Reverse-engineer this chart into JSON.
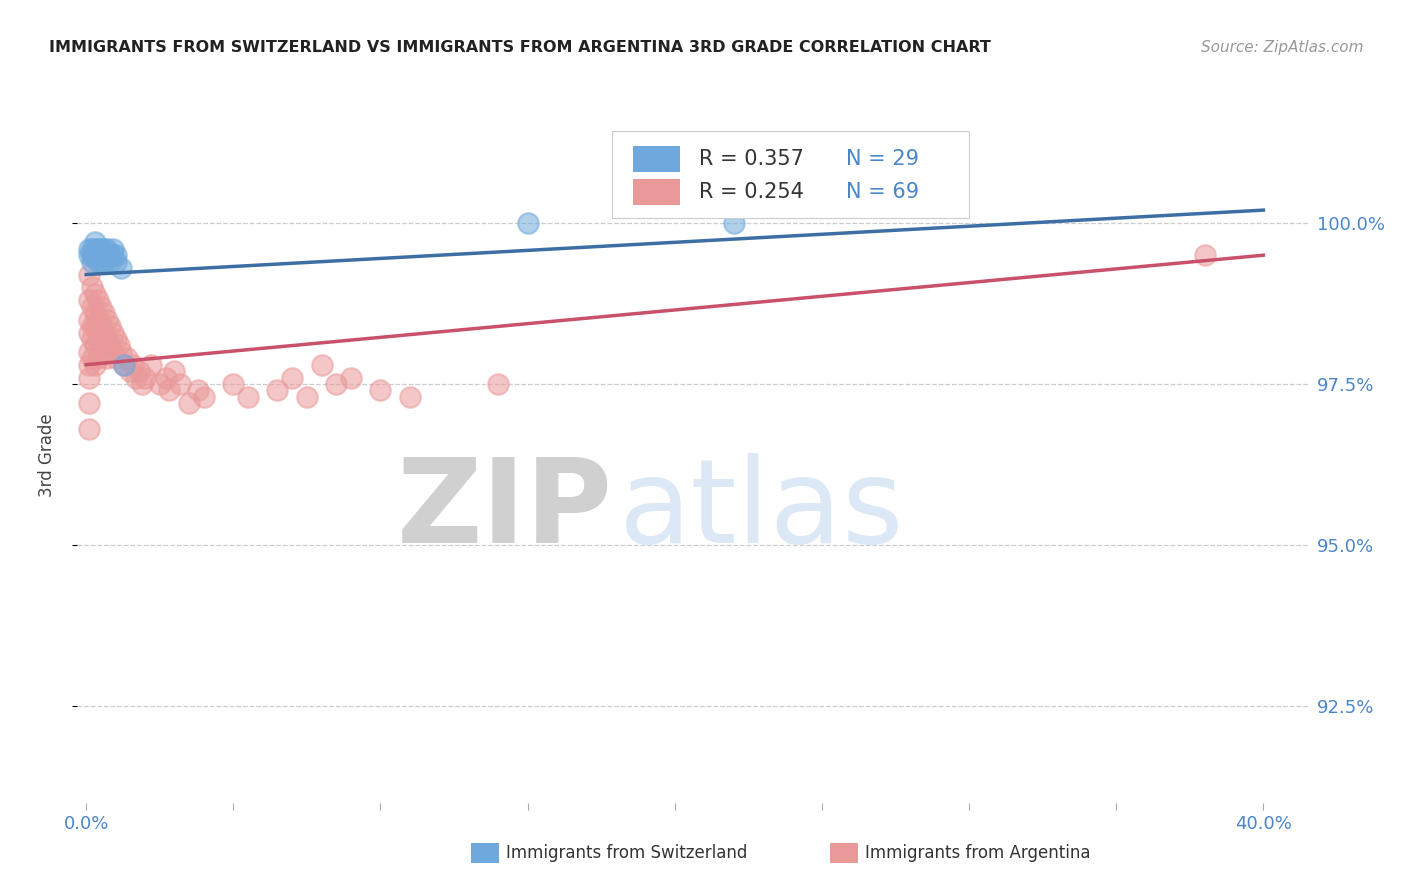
{
  "title": "IMMIGRANTS FROM SWITZERLAND VS IMMIGRANTS FROM ARGENTINA 3RD GRADE CORRELATION CHART",
  "source": "Source: ZipAtlas.com",
  "ylabel": "3rd Grade",
  "y_ticks": [
    92.5,
    95.0,
    97.5,
    100.0
  ],
  "y_tick_labels": [
    "92.5%",
    "95.0%",
    "97.5%",
    "100.0%"
  ],
  "x_ticks": [
    0.0,
    0.05,
    0.1,
    0.15,
    0.2,
    0.25,
    0.3,
    0.35,
    0.4
  ],
  "xlim": [
    -0.003,
    0.415
  ],
  "ylim": [
    91.0,
    101.8
  ],
  "legend_r_blue": "R = 0.357",
  "legend_n_blue": "N = 29",
  "legend_r_pink": "R = 0.254",
  "legend_n_pink": "N = 69",
  "blue_color": "#6fa8dc",
  "pink_color": "#ea9999",
  "blue_line_color": "#3d6fa5",
  "pink_line_color": "#c9516a",
  "title_color": "#222222",
  "axis_label_color": "#4a86c8",
  "grid_color": "#cccccc",
  "watermark_color": "#d6e4f5",
  "watermark_text": "ZIPatlas",
  "bottom_label1": "Immigrants from Switzerland",
  "bottom_label2": "Immigrants from Argentina",
  "sw_x": [
    0.001,
    0.001,
    0.002,
    0.002,
    0.002,
    0.003,
    0.003,
    0.003,
    0.004,
    0.004,
    0.004,
    0.005,
    0.005,
    0.005,
    0.006,
    0.006,
    0.006,
    0.007,
    0.007,
    0.008,
    0.008,
    0.009,
    0.009,
    0.01,
    0.01,
    0.012,
    0.013,
    0.15,
    0.22
  ],
  "sw_y": [
    99.5,
    99.6,
    99.4,
    99.5,
    99.6,
    99.5,
    99.6,
    99.7,
    99.4,
    99.5,
    99.6,
    99.4,
    99.5,
    99.6,
    99.4,
    99.5,
    99.6,
    99.5,
    99.6,
    99.4,
    99.5,
    99.5,
    99.6,
    99.4,
    99.5,
    99.3,
    97.8,
    100.0,
    100.0
  ],
  "arg_x": [
    0.001,
    0.001,
    0.001,
    0.001,
    0.001,
    0.001,
    0.001,
    0.001,
    0.001,
    0.002,
    0.002,
    0.002,
    0.002,
    0.002,
    0.003,
    0.003,
    0.003,
    0.003,
    0.003,
    0.004,
    0.004,
    0.004,
    0.004,
    0.005,
    0.005,
    0.005,
    0.006,
    0.006,
    0.006,
    0.007,
    0.007,
    0.007,
    0.008,
    0.008,
    0.009,
    0.009,
    0.01,
    0.01,
    0.011,
    0.012,
    0.013,
    0.014,
    0.015,
    0.016,
    0.017,
    0.018,
    0.019,
    0.02,
    0.022,
    0.025,
    0.027,
    0.028,
    0.03,
    0.032,
    0.035,
    0.038,
    0.04,
    0.05,
    0.055,
    0.065,
    0.07,
    0.075,
    0.08,
    0.085,
    0.09,
    0.1,
    0.11,
    0.14,
    0.38
  ],
  "arg_y": [
    99.2,
    98.8,
    98.5,
    98.3,
    98.0,
    97.8,
    97.6,
    97.2,
    96.8,
    99.0,
    98.7,
    98.4,
    98.2,
    97.9,
    98.9,
    98.6,
    98.4,
    98.1,
    97.8,
    98.8,
    98.5,
    98.2,
    97.9,
    98.7,
    98.4,
    98.1,
    98.6,
    98.3,
    98.0,
    98.5,
    98.2,
    97.9,
    98.4,
    98.1,
    98.3,
    98.0,
    98.2,
    97.9,
    98.1,
    98.0,
    97.8,
    97.9,
    97.7,
    97.8,
    97.6,
    97.7,
    97.5,
    97.6,
    97.8,
    97.5,
    97.6,
    97.4,
    97.7,
    97.5,
    97.2,
    97.4,
    97.3,
    97.5,
    97.3,
    97.4,
    97.6,
    97.3,
    97.8,
    97.5,
    97.6,
    97.4,
    97.3,
    97.5,
    99.5
  ],
  "sw_line_x": [
    0.0,
    0.4
  ],
  "sw_line_y": [
    99.2,
    100.2
  ],
  "arg_line_x": [
    0.0,
    0.4
  ],
  "arg_line_y": [
    97.8,
    99.5
  ]
}
